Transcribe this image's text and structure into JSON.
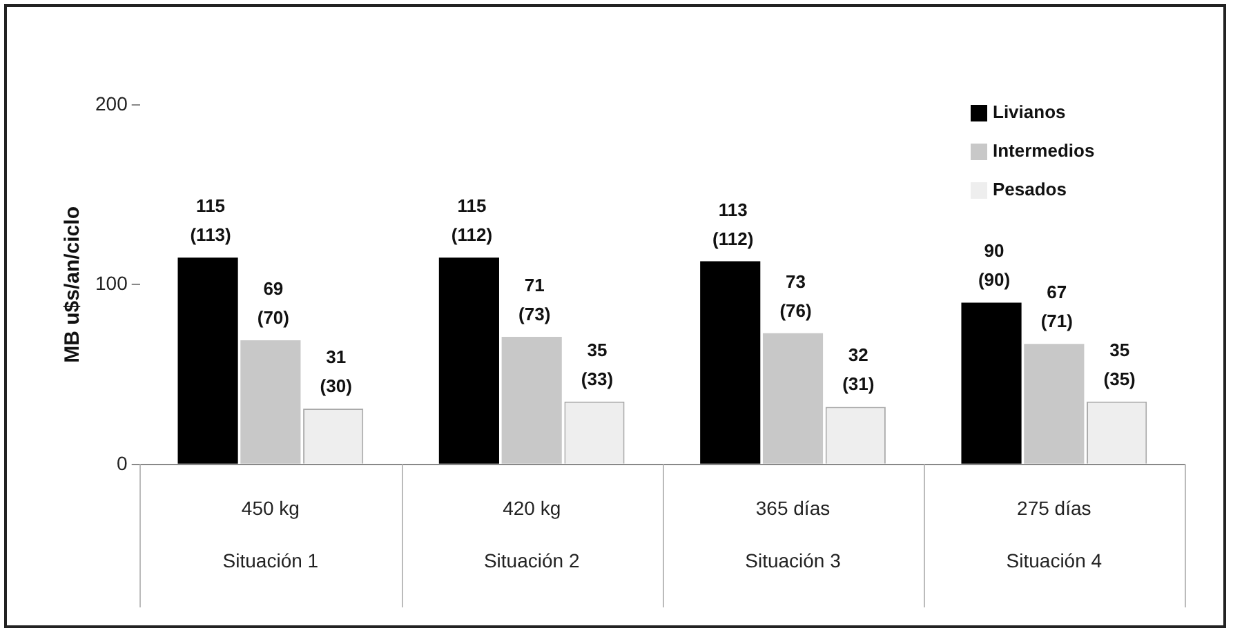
{
  "chart_data": {
    "type": "bar",
    "ylabel": "MB u$s/an/ciclo",
    "categories": [
      "450 kg\nSituación 1",
      "420 kg\nSituación 2",
      "365 días\nSituación 3",
      "275 días\nSituación 4"
    ],
    "series": [
      {
        "name": "Livianos",
        "color": "#000000",
        "values": [
          115,
          115,
          113,
          90
        ],
        "value_labels": [
          "115 (113)",
          "115 (112)",
          "113 (112)",
          "90 (90)"
        ]
      },
      {
        "name": "Intermedios",
        "color": "#c8c8c8",
        "values": [
          69,
          71,
          73,
          67
        ],
        "value_labels": [
          "69 (70)",
          "71 (73)",
          "73 (76)",
          "67 (71)"
        ]
      },
      {
        "name": "Pesados",
        "color": "#eeeeee",
        "values": [
          31,
          35,
          32,
          35
        ],
        "value_labels": [
          "31 (30)",
          "35 (33)",
          "32 (31)",
          "35 (35)"
        ]
      }
    ],
    "ylim": [
      0,
      200
    ],
    "yticks": [
      0,
      100,
      200
    ],
    "grid": false,
    "legend": "top right"
  }
}
